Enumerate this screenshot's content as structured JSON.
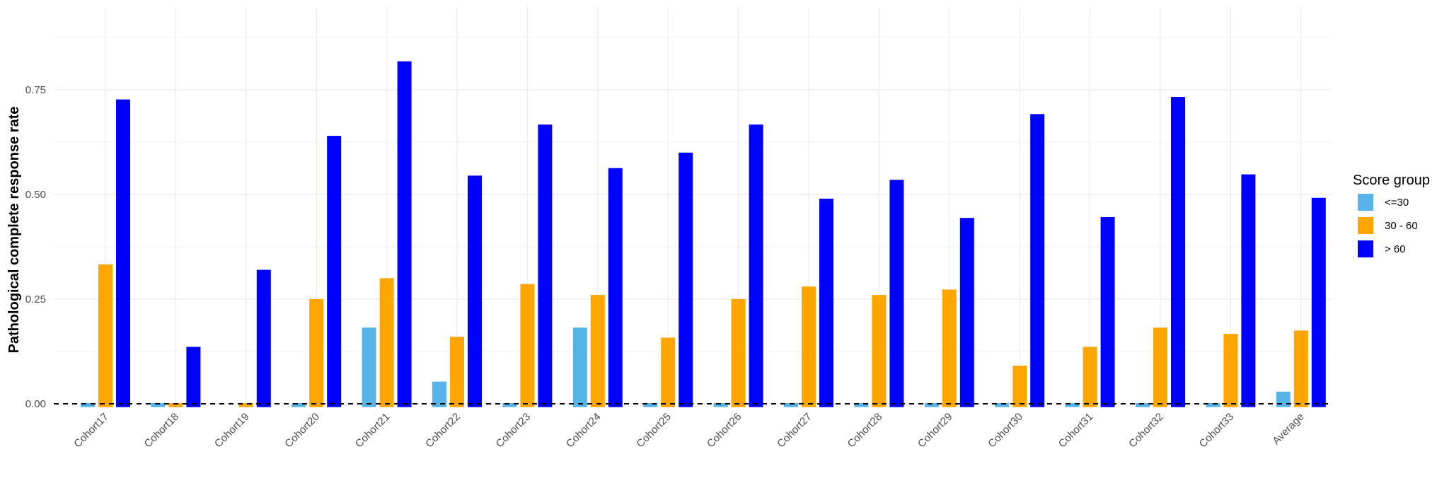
{
  "chart_data": {
    "type": "bar",
    "ylabel": "Pathological complete response rate",
    "xlabel": "",
    "categories": [
      "Cohort17",
      "Cohort18",
      "Cohort19",
      "Cohort20",
      "Cohort21",
      "Cohort22",
      "Cohort23",
      "Cohort24",
      "Cohort25",
      "Cohort26",
      "Cohort27",
      "Cohort28",
      "Cohort29",
      "Cohort30",
      "Cohort31",
      "Cohort32",
      "Cohort33",
      "Average"
    ],
    "series": [
      {
        "name": "<=30",
        "color": "#56B4E9",
        "values": [
          0,
          0,
          null,
          0,
          0.182,
          0.053,
          0,
          0.182,
          0,
          0,
          0,
          0,
          0,
          0,
          0,
          0,
          0,
          0.029
        ]
      },
      {
        "name": "30 - 60",
        "color": "#FFA500",
        "values": [
          0.333,
          0,
          0,
          0.25,
          0.3,
          0.16,
          0.286,
          0.26,
          0.158,
          0.25,
          0.28,
          0.26,
          0.273,
          0.091,
          0.136,
          0.182,
          0.167,
          0.175
        ]
      },
      {
        "name": "> 60",
        "color": "#0000FF",
        "values": [
          0.727,
          0.136,
          0.32,
          0.64,
          0.818,
          0.545,
          0.667,
          0.563,
          0.6,
          0.667,
          0.49,
          0.535,
          0.444,
          0.692,
          0.446,
          0.733,
          0.548,
          0.492
        ]
      }
    ],
    "yticks": [
      "0.00",
      "0.25",
      "0.50",
      "0.75"
    ],
    "ylim": [
      -0.01,
      0.9
    ],
    "reference_line": {
      "y": 0,
      "style": "dashed"
    },
    "grid": true,
    "legend": {
      "title": "Score group",
      "position": "right"
    }
  }
}
